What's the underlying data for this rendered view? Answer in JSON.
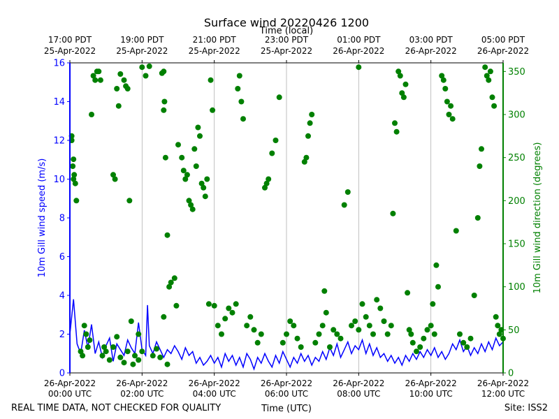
{
  "chart_data": {
    "type": "line",
    "title": "Surface wind 20220426 1200",
    "top_axis_label": "Time (local)",
    "xlabel": "Time (UTC)",
    "ylabel_left": "10m Gill wind speed (m/s)",
    "ylabel_right": "10m Gill wind direction (degrees)",
    "x_range_hours_utc": [
      0,
      12
    ],
    "bottom_ticks": [
      {
        "hour": 0,
        "date": "26-Apr-2022",
        "time": "00:00 UTC"
      },
      {
        "hour": 2,
        "date": "26-Apr-2022",
        "time": "02:00 UTC"
      },
      {
        "hour": 4,
        "date": "26-Apr-2022",
        "time": "04:00 UTC"
      },
      {
        "hour": 6,
        "date": "26-Apr-2022",
        "time": "06:00 UTC"
      },
      {
        "hour": 8,
        "date": "26-Apr-2022",
        "time": "08:00 UTC"
      },
      {
        "hour": 10,
        "date": "26-Apr-2022",
        "time": "10:00 UTC"
      },
      {
        "hour": 12,
        "date": "26-Apr-2022",
        "time": "12:00 UTC"
      }
    ],
    "top_ticks": [
      {
        "hour": 0,
        "time": "17:00 PDT",
        "date": "25-Apr-2022"
      },
      {
        "hour": 2,
        "time": "19:00 PDT",
        "date": "25-Apr-2022"
      },
      {
        "hour": 4,
        "time": "21:00 PDT",
        "date": "25-Apr-2022"
      },
      {
        "hour": 6,
        "time": "23:00 PDT",
        "date": "25-Apr-2022"
      },
      {
        "hour": 8,
        "time": "01:00 PDT",
        "date": "26-Apr-2022"
      },
      {
        "hour": 10,
        "time": "03:00 PDT",
        "date": "26-Apr-2022"
      },
      {
        "hour": 12,
        "time": "05:00 PDT",
        "date": "26-Apr-2022"
      }
    ],
    "ylim_left": [
      0,
      16
    ],
    "yticks_left": [
      0,
      2,
      4,
      6,
      8,
      10,
      12,
      14,
      16
    ],
    "ylim_right": [
      0,
      360
    ],
    "yticks_right": [
      0,
      50,
      100,
      150,
      200,
      250,
      300,
      350
    ],
    "grid": "vertical at major x ticks",
    "colors": {
      "speed": "#0000ff",
      "direction": "#008000",
      "grid": "#b0b0b0"
    },
    "speed_series": {
      "name": "10m Gill wind speed",
      "points": [
        [
          0.0,
          2.0
        ],
        [
          0.1,
          3.8
        ],
        [
          0.2,
          1.5
        ],
        [
          0.3,
          1.0
        ],
        [
          0.4,
          2.2
        ],
        [
          0.5,
          1.3
        ],
        [
          0.6,
          2.5
        ],
        [
          0.7,
          1.0
        ],
        [
          0.8,
          1.6
        ],
        [
          0.9,
          0.8
        ],
        [
          1.0,
          1.4
        ],
        [
          1.1,
          1.8
        ],
        [
          1.2,
          0.6
        ],
        [
          1.3,
          1.5
        ],
        [
          1.4,
          1.2
        ],
        [
          1.5,
          0.9
        ],
        [
          1.6,
          1.7
        ],
        [
          1.7,
          1.3
        ],
        [
          1.8,
          1.0
        ],
        [
          1.9,
          2.6
        ],
        [
          2.0,
          1.2
        ],
        [
          2.1,
          0.9
        ],
        [
          2.15,
          3.5
        ],
        [
          2.2,
          1.4
        ],
        [
          2.3,
          1.0
        ],
        [
          2.4,
          1.6
        ],
        [
          2.5,
          1.2
        ],
        [
          2.6,
          0.8
        ],
        [
          2.7,
          1.2
        ],
        [
          2.8,
          1.0
        ],
        [
          2.9,
          1.4
        ],
        [
          3.0,
          1.1
        ],
        [
          3.1,
          0.7
        ],
        [
          3.2,
          1.3
        ],
        [
          3.3,
          0.9
        ],
        [
          3.4,
          1.1
        ],
        [
          3.5,
          0.5
        ],
        [
          3.6,
          0.8
        ],
        [
          3.7,
          0.4
        ],
        [
          3.8,
          0.6
        ],
        [
          3.9,
          0.9
        ],
        [
          4.0,
          0.5
        ],
        [
          4.1,
          0.8
        ],
        [
          4.2,
          0.3
        ],
        [
          4.3,
          1.0
        ],
        [
          4.4,
          0.6
        ],
        [
          4.5,
          0.9
        ],
        [
          4.6,
          0.4
        ],
        [
          4.7,
          0.8
        ],
        [
          4.8,
          0.3
        ],
        [
          4.9,
          1.0
        ],
        [
          5.0,
          0.7
        ],
        [
          5.1,
          0.2
        ],
        [
          5.2,
          0.8
        ],
        [
          5.3,
          0.5
        ],
        [
          5.4,
          1.0
        ],
        [
          5.5,
          0.6
        ],
        [
          5.6,
          0.3
        ],
        [
          5.7,
          0.9
        ],
        [
          5.8,
          0.5
        ],
        [
          5.9,
          1.1
        ],
        [
          6.0,
          0.7
        ],
        [
          6.1,
          0.3
        ],
        [
          6.2,
          0.8
        ],
        [
          6.3,
          0.5
        ],
        [
          6.4,
          1.0
        ],
        [
          6.5,
          0.6
        ],
        [
          6.6,
          0.9
        ],
        [
          6.7,
          0.4
        ],
        [
          6.8,
          0.8
        ],
        [
          6.9,
          0.6
        ],
        [
          7.0,
          1.1
        ],
        [
          7.1,
          0.7
        ],
        [
          7.2,
          1.3
        ],
        [
          7.3,
          0.9
        ],
        [
          7.4,
          1.5
        ],
        [
          7.5,
          0.8
        ],
        [
          7.6,
          1.2
        ],
        [
          7.7,
          1.6
        ],
        [
          7.8,
          1.0
        ],
        [
          7.9,
          1.4
        ],
        [
          8.0,
          1.2
        ],
        [
          8.1,
          1.7
        ],
        [
          8.2,
          1.0
        ],
        [
          8.3,
          1.5
        ],
        [
          8.4,
          0.9
        ],
        [
          8.5,
          1.3
        ],
        [
          8.6,
          0.8
        ],
        [
          8.7,
          1.0
        ],
        [
          8.8,
          0.6
        ],
        [
          8.9,
          0.9
        ],
        [
          9.0,
          0.5
        ],
        [
          9.1,
          0.8
        ],
        [
          9.2,
          0.4
        ],
        [
          9.3,
          0.9
        ],
        [
          9.4,
          0.6
        ],
        [
          9.5,
          1.0
        ],
        [
          9.6,
          0.7
        ],
        [
          9.7,
          1.1
        ],
        [
          9.8,
          0.8
        ],
        [
          9.9,
          1.2
        ],
        [
          10.0,
          0.9
        ],
        [
          10.1,
          1.3
        ],
        [
          10.2,
          0.8
        ],
        [
          10.3,
          1.1
        ],
        [
          10.4,
          0.7
        ],
        [
          10.5,
          1.0
        ],
        [
          10.6,
          1.5
        ],
        [
          10.7,
          1.2
        ],
        [
          10.8,
          1.7
        ],
        [
          10.9,
          1.1
        ],
        [
          11.0,
          1.4
        ],
        [
          11.1,
          0.9
        ],
        [
          11.2,
          1.3
        ],
        [
          11.3,
          1.0
        ],
        [
          11.4,
          1.5
        ],
        [
          11.5,
          1.1
        ],
        [
          11.6,
          1.6
        ],
        [
          11.7,
          1.2
        ],
        [
          11.8,
          1.8
        ],
        [
          11.9,
          1.4
        ],
        [
          12.0,
          1.6
        ]
      ]
    },
    "direction_series": {
      "name": "10m Gill wind direction",
      "points": [
        [
          0.05,
          270
        ],
        [
          0.08,
          240
        ],
        [
          0.1,
          225
        ],
        [
          0.12,
          230
        ],
        [
          0.15,
          220
        ],
        [
          0.05,
          275
        ],
        [
          0.1,
          248
        ],
        [
          0.18,
          200
        ],
        [
          0.3,
          25
        ],
        [
          0.35,
          20
        ],
        [
          0.4,
          55
        ],
        [
          0.45,
          45
        ],
        [
          0.5,
          30
        ],
        [
          0.55,
          38
        ],
        [
          0.6,
          300
        ],
        [
          0.65,
          345
        ],
        [
          0.7,
          340
        ],
        [
          0.75,
          350
        ],
        [
          0.8,
          350
        ],
        [
          0.85,
          340
        ],
        [
          0.9,
          20
        ],
        [
          0.95,
          30
        ],
        [
          1.0,
          25
        ],
        [
          1.1,
          15
        ],
        [
          1.2,
          230
        ],
        [
          1.25,
          225
        ],
        [
          1.3,
          330
        ],
        [
          1.35,
          310
        ],
        [
          1.4,
          347
        ],
        [
          1.5,
          340
        ],
        [
          1.55,
          333
        ],
        [
          1.6,
          330
        ],
        [
          1.65,
          200
        ],
        [
          1.2,
          30
        ],
        [
          1.3,
          42
        ],
        [
          1.4,
          18
        ],
        [
          1.5,
          12
        ],
        [
          1.6,
          25
        ],
        [
          1.7,
          60
        ],
        [
          1.75,
          10
        ],
        [
          1.8,
          20
        ],
        [
          1.9,
          45
        ],
        [
          2.0,
          355
        ],
        [
          2.1,
          345
        ],
        [
          2.0,
          25
        ],
        [
          1.9,
          15
        ],
        [
          2.2,
          356
        ],
        [
          2.3,
          20
        ],
        [
          2.4,
          28
        ],
        [
          2.5,
          18
        ],
        [
          2.6,
          65
        ],
        [
          2.7,
          10
        ],
        [
          2.55,
          348
        ],
        [
          2.6,
          350
        ],
        [
          2.6,
          305
        ],
        [
          2.62,
          315
        ],
        [
          2.65,
          250
        ],
        [
          2.7,
          160
        ],
        [
          2.75,
          100
        ],
        [
          2.8,
          105
        ],
        [
          2.9,
          110
        ],
        [
          2.95,
          78
        ],
        [
          3.0,
          265
        ],
        [
          3.1,
          250
        ],
        [
          3.15,
          235
        ],
        [
          3.2,
          225
        ],
        [
          3.25,
          230
        ],
        [
          3.3,
          200
        ],
        [
          3.35,
          195
        ],
        [
          3.4,
          190
        ],
        [
          3.45,
          260
        ],
        [
          3.5,
          240
        ],
        [
          3.55,
          285
        ],
        [
          3.6,
          275
        ],
        [
          3.65,
          220
        ],
        [
          3.7,
          215
        ],
        [
          3.75,
          205
        ],
        [
          3.8,
          225
        ],
        [
          3.85,
          80
        ],
        [
          3.9,
          340
        ],
        [
          3.95,
          305
        ],
        [
          4.0,
          78
        ],
        [
          4.1,
          55
        ],
        [
          4.2,
          45
        ],
        [
          4.3,
          63
        ],
        [
          4.4,
          75
        ],
        [
          4.5,
          70
        ],
        [
          4.6,
          80
        ],
        [
          4.65,
          330
        ],
        [
          4.7,
          345
        ],
        [
          4.75,
          315
        ],
        [
          4.8,
          295
        ],
        [
          4.9,
          55
        ],
        [
          5.0,
          65
        ],
        [
          5.1,
          50
        ],
        [
          5.2,
          35
        ],
        [
          5.3,
          45
        ],
        [
          5.4,
          215
        ],
        [
          5.45,
          220
        ],
        [
          5.5,
          225
        ],
        [
          5.6,
          255
        ],
        [
          5.7,
          270
        ],
        [
          5.8,
          320
        ],
        [
          5.9,
          35
        ],
        [
          6.0,
          45
        ],
        [
          6.1,
          60
        ],
        [
          6.2,
          55
        ],
        [
          6.3,
          40
        ],
        [
          6.4,
          30
        ],
        [
          6.5,
          245
        ],
        [
          6.55,
          250
        ],
        [
          6.6,
          275
        ],
        [
          6.65,
          290
        ],
        [
          6.7,
          300
        ],
        [
          6.8,
          35
        ],
        [
          6.9,
          45
        ],
        [
          7.0,
          55
        ],
        [
          7.05,
          95
        ],
        [
          7.1,
          70
        ],
        [
          7.2,
          30
        ],
        [
          7.3,
          50
        ],
        [
          7.4,
          45
        ],
        [
          7.5,
          40
        ],
        [
          7.6,
          195
        ],
        [
          7.7,
          210
        ],
        [
          7.8,
          55
        ],
        [
          7.9,
          60
        ],
        [
          8.0,
          50
        ],
        [
          8.0,
          355
        ],
        [
          8.1,
          80
        ],
        [
          8.2,
          65
        ],
        [
          8.3,
          55
        ],
        [
          8.4,
          45
        ],
        [
          8.5,
          85
        ],
        [
          8.6,
          75
        ],
        [
          8.7,
          60
        ],
        [
          8.8,
          45
        ],
        [
          8.9,
          55
        ],
        [
          8.95,
          185
        ],
        [
          9.0,
          290
        ],
        [
          9.05,
          280
        ],
        [
          9.1,
          350
        ],
        [
          9.15,
          345
        ],
        [
          9.2,
          325
        ],
        [
          9.25,
          320
        ],
        [
          9.3,
          335
        ],
        [
          9.35,
          93
        ],
        [
          9.4,
          50
        ],
        [
          9.45,
          45
        ],
        [
          9.5,
          35
        ],
        [
          9.6,
          25
        ],
        [
          9.7,
          30
        ],
        [
          9.8,
          40
        ],
        [
          9.9,
          50
        ],
        [
          10.0,
          55
        ],
        [
          10.05,
          80
        ],
        [
          10.1,
          45
        ],
        [
          10.15,
          125
        ],
        [
          10.2,
          100
        ],
        [
          10.3,
          345
        ],
        [
          10.35,
          340
        ],
        [
          10.4,
          330
        ],
        [
          10.45,
          315
        ],
        [
          10.5,
          300
        ],
        [
          10.55,
          310
        ],
        [
          10.6,
          295
        ],
        [
          10.7,
          165
        ],
        [
          10.8,
          45
        ],
        [
          10.9,
          35
        ],
        [
          11.0,
          30
        ],
        [
          11.1,
          40
        ],
        [
          11.2,
          90
        ],
        [
          11.3,
          180
        ],
        [
          11.35,
          240
        ],
        [
          11.4,
          260
        ],
        [
          11.5,
          355
        ],
        [
          11.55,
          345
        ],
        [
          11.6,
          340
        ],
        [
          11.65,
          350
        ],
        [
          11.7,
          320
        ],
        [
          11.75,
          310
        ],
        [
          11.8,
          65
        ],
        [
          11.85,
          55
        ],
        [
          11.9,
          45
        ],
        [
          11.95,
          50
        ],
        [
          12.0,
          40
        ]
      ]
    }
  },
  "footer": {
    "left_note": "REAL TIME DATA, NOT CHECKED FOR QUALITY",
    "site": "Site: ISS2"
  }
}
